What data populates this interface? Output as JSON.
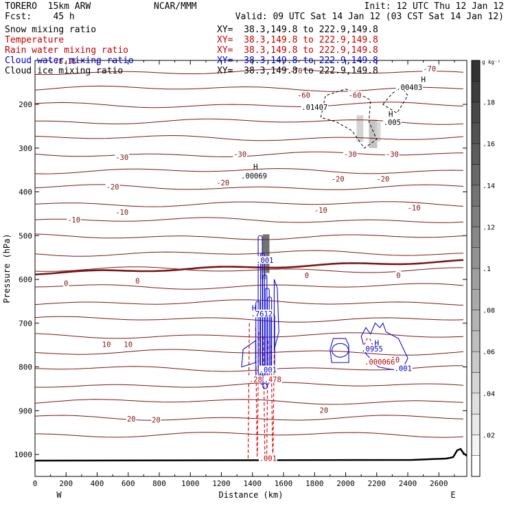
{
  "header": {
    "model": "TORERO  15km ARW",
    "org": "NCAR/MMM",
    "init": "Init: 12 UTC Thu 12 Jan 12",
    "fcst": "Fcst:    45 h",
    "valid": "Valid: 09 UTC Sat 14 Jan 12 (03 CST Sat 14 Jan 12)"
  },
  "fields": [
    {
      "name": "Snow mixing ratio",
      "color": "#000000",
      "xy": "XY=  38.3,149.8 to 222.9,149.8"
    },
    {
      "name": "Temperature",
      "color": "#c00000",
      "xy": "XY=  38.3,149.8 to 222.9,149.8"
    },
    {
      "name": "Rain water mixing ratio",
      "color": "#c00000",
      "xy": "XY=  38.3,149.8 to 222.9,149.8"
    },
    {
      "name": "Cloud water mixing ratio",
      "color": "#0000c0",
      "xy": "XY=  38.3,149.8 to 222.9,149.8"
    },
    {
      "name": "Cloud ice mixing ratio",
      "color": "#000000",
      "xy": "XY=  38.3,149.8 to 222.9,149.8"
    }
  ],
  "chart_data": {
    "type": "contour cross-section",
    "xlabel": "Distance (km)",
    "ylabel": "Pressure (hPa)",
    "x_ticks": [
      0,
      200,
      400,
      600,
      800,
      1000,
      1200,
      1400,
      1600,
      1800,
      2000,
      2200,
      2400,
      2600
    ],
    "xlim": [
      0,
      2780
    ],
    "y_ticks": [
      200,
      300,
      400,
      500,
      600,
      700,
      800,
      900,
      1000
    ],
    "ylim": [
      100,
      1050
    ],
    "west_label": "W",
    "east_label": "E",
    "colorbar": {
      "units": "g kg⁻¹",
      "ticks": [
        ".02",
        ".04",
        ".06",
        ".08",
        ".1",
        ".12",
        ".14",
        ".16",
        ".18"
      ]
    },
    "temperature_labels": [
      {
        "x": 180,
        "p": 103,
        "text": "-78.18"
      },
      {
        "x": 1680,
        "p": 125,
        "text": "-70"
      },
      {
        "x": 2540,
        "p": 120,
        "text": "-70"
      },
      {
        "x": 1730,
        "p": 180,
        "text": "-60"
      },
      {
        "x": 2060,
        "p": 180,
        "text": "-60"
      },
      {
        "x": 560,
        "p": 322,
        "text": "-30"
      },
      {
        "x": 1320,
        "p": 315,
        "text": "-30"
      },
      {
        "x": 2030,
        "p": 315,
        "text": "-30"
      },
      {
        "x": 2300,
        "p": 315,
        "text": "-30"
      },
      {
        "x": 500,
        "p": 390,
        "text": "-20"
      },
      {
        "x": 1210,
        "p": 380,
        "text": "-20"
      },
      {
        "x": 1950,
        "p": 372,
        "text": "-20"
      },
      {
        "x": 2240,
        "p": 372,
        "text": "-20"
      },
      {
        "x": 250,
        "p": 465,
        "text": "-10"
      },
      {
        "x": 560,
        "p": 448,
        "text": "-10"
      },
      {
        "x": 1840,
        "p": 443,
        "text": "-10"
      },
      {
        "x": 2440,
        "p": 438,
        "text": "-10"
      },
      {
        "x": 200,
        "p": 610,
        "text": "0"
      },
      {
        "x": 660,
        "p": 605,
        "text": "0"
      },
      {
        "x": 1750,
        "p": 592,
        "text": "0"
      },
      {
        "x": 2340,
        "p": 592,
        "text": "0"
      },
      {
        "x": 460,
        "p": 750,
        "text": "10"
      },
      {
        "x": 600,
        "p": 750,
        "text": "10"
      },
      {
        "x": 2320,
        "p": 785,
        "text": "10"
      },
      {
        "x": 620,
        "p": 920,
        "text": "20"
      },
      {
        "x": 780,
        "p": 922,
        "text": "20"
      },
      {
        "x": 1860,
        "p": 900,
        "text": "20"
      }
    ],
    "value_labels": [
      {
        "x": 1480,
        "p": 558,
        "text": ".001",
        "color": "#0000c0"
      },
      {
        "x": 1460,
        "p": 680,
        "text": ".7612",
        "color": "#0000c0"
      },
      {
        "x": 1500,
        "p": 808,
        "text": ".001",
        "color": "#0000c0"
      },
      {
        "x": 2170,
        "p": 760,
        "text": ".0955",
        "color": "#0000c0"
      },
      {
        "x": 2370,
        "p": 805,
        "text": ".001",
        "color": "#0000c0"
      },
      {
        "x": 1420,
        "p": 830,
        "text": ".28",
        "color": "#c00000"
      },
      {
        "x": 1530,
        "p": 830,
        "text": ".478",
        "color": "#c00000"
      },
      {
        "x": 2220,
        "p": 790,
        "text": ".000066",
        "color": "#c00000"
      },
      {
        "x": 1500,
        "p": 1010,
        "text": ".001",
        "color": "#c00000"
      },
      {
        "x": 1800,
        "p": 208,
        "text": ".01407",
        "color": "#000000"
      },
      {
        "x": 2410,
        "p": 162,
        "text": ".00403",
        "color": "#000000"
      },
      {
        "x": 2300,
        "p": 242,
        "text": ".005",
        "color": "#000000"
      },
      {
        "x": 1410,
        "p": 365,
        "text": ".00069",
        "color": "#000000"
      }
    ],
    "hilo_labels": [
      {
        "x": 1420,
        "p": 342,
        "text": "H",
        "color": "#000000"
      },
      {
        "x": 2290,
        "p": 222,
        "text": "H",
        "color": "#000000"
      },
      {
        "x": 2500,
        "p": 143,
        "text": "H",
        "color": "#000000"
      },
      {
        "x": 1410,
        "p": 665,
        "text": "H",
        "color": "#0000c0"
      },
      {
        "x": 2200,
        "p": 745,
        "text": "H",
        "color": "#0000c0"
      }
    ]
  }
}
